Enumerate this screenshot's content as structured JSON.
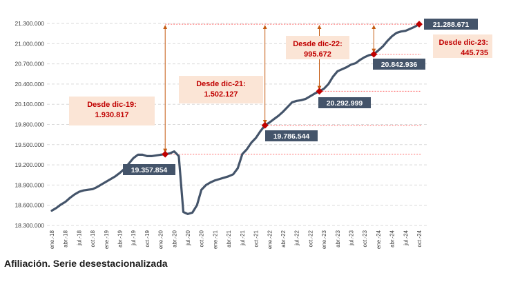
{
  "caption": "Afiliación. Serie desestacionalizada",
  "colors": {
    "line": "#44546a",
    "grid": "#d9d9d9",
    "marker": "#c00000",
    "arrow": "#c55a11",
    "refline": "#ff6b6b",
    "note_bg": "#fbe5d6",
    "note_text": "#c00000",
    "value_bg": "#44546a",
    "value_text": "#ffffff"
  },
  "chart_data": {
    "type": "line",
    "title": "",
    "xlabel": "",
    "ylabel": "",
    "ylim": [
      18300000,
      21400000
    ],
    "yticks": [
      18300000,
      18600000,
      18900000,
      19200000,
      19500000,
      19800000,
      20100000,
      20400000,
      20700000,
      21000000,
      21300000
    ],
    "ytick_labels": [
      "18.300.000",
      "18.600.000",
      "18.900.000",
      "19.200.000",
      "19.500.000",
      "19.800.000",
      "20.100.000",
      "20.400.000",
      "20.700.000",
      "21.000.000",
      "21.300.000"
    ],
    "xtick_labels": [
      "ene.-18",
      "abr.-18",
      "jul.-18",
      "oct.-18",
      "ene.-19",
      "abr.-19",
      "jul.-19",
      "oct.-19",
      "ene.-20",
      "abr.-20",
      "jul.-20",
      "oct.-20",
      "ene.-21",
      "abr.-21",
      "jul.-21",
      "oct.-21",
      "ene.-22",
      "abr.-22",
      "jul.-22",
      "oct.-22",
      "ene.-23",
      "abr.-23",
      "jul.-23",
      "oct.-23",
      "ene.-24",
      "abr.-24",
      "jul.-24",
      "oct.-24"
    ],
    "series": [
      {
        "values": [
          18520000,
          18560000,
          18610000,
          18650000,
          18710000,
          18760000,
          18800000,
          18820000,
          18830000,
          18840000,
          18870000,
          18910000,
          18950000,
          18990000,
          19030000,
          19080000,
          19140000,
          19220000,
          19300000,
          19350000,
          19350000,
          19330000,
          19330000,
          19340000,
          19350000,
          19357854,
          19370000,
          19400000,
          19330000,
          18500000,
          18470000,
          18490000,
          18600000,
          18830000,
          18900000,
          18940000,
          18970000,
          18990000,
          19010000,
          19030000,
          19060000,
          19150000,
          19360000,
          19430000,
          19530000,
          19600000,
          19700000,
          19786544,
          19830000,
          19880000,
          19930000,
          19990000,
          20060000,
          20130000,
          20150000,
          20160000,
          20180000,
          20220000,
          20260000,
          20292999,
          20330000,
          20400000,
          20510000,
          20590000,
          20620000,
          20650000,
          20690000,
          20710000,
          20760000,
          20800000,
          20830000,
          20842936,
          20900000,
          20960000,
          21040000,
          21110000,
          21160000,
          21180000,
          21190000,
          21220000,
          21250000,
          21288671
        ]
      }
    ],
    "highlights": [
      {
        "x_index": 25,
        "value_label": "19.357.854",
        "note_lines": [
          "Desde dic-19:",
          "1.930.817"
        ]
      },
      {
        "x_index": 47,
        "value_label": "19.786.544",
        "note_lines": [
          "Desde dic-21:",
          "1.502.127"
        ]
      },
      {
        "x_index": 59,
        "value_label": "20.292.999",
        "note_lines": [
          "Desde dic-22:",
          "995.672"
        ]
      },
      {
        "x_index": 71,
        "value_label": "20.842.936",
        "note_lines": [
          "Desde dic-23:",
          "445.735"
        ]
      },
      {
        "x_index": 81,
        "value_label": "21.288.671",
        "note_lines": []
      }
    ]
  }
}
